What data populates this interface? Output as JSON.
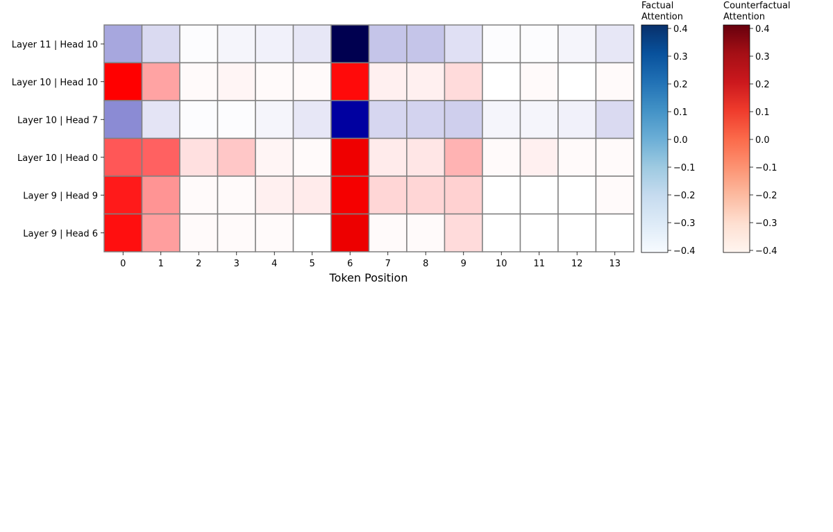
{
  "chart_data": {
    "type": "heatmap",
    "xlabel": "Token Position",
    "ylabel": "",
    "x_categories": [
      "0",
      "1",
      "2",
      "3",
      "4",
      "5",
      "6",
      "7",
      "8",
      "9",
      "10",
      "11",
      "12",
      "13"
    ],
    "y_categories": [
      "Layer 11 | Head 10",
      "Layer 10 | Head 10",
      "Layer 10 | Head 7",
      "Layer 10 | Head 0",
      "Layer 9 | Head 9",
      "Layer 9 | Head 6"
    ],
    "rows": [
      {
        "label": "Layer 11 | Head 10",
        "map": "factual",
        "values": [
          0.26,
          0.11,
          0.01,
          0.03,
          0.04,
          0.07,
          1.0,
          0.17,
          0.17,
          0.09,
          0.01,
          0.01,
          0.03,
          0.07
        ]
      },
      {
        "label": "Layer 10 | Head 10",
        "map": "counterfactual",
        "values": [
          0.5,
          0.18,
          0.01,
          0.02,
          0.01,
          0.01,
          0.48,
          0.03,
          0.03,
          0.07,
          0.0,
          0.01,
          0.0,
          0.01
        ]
      },
      {
        "label": "Layer 10 | Head 7",
        "map": "factual",
        "values": [
          0.34,
          0.08,
          0.01,
          0.01,
          0.03,
          0.07,
          0.75,
          0.12,
          0.13,
          0.14,
          0.03,
          0.03,
          0.04,
          0.11
        ]
      },
      {
        "label": "Layer 10 | Head 0",
        "map": "counterfactual",
        "values": [
          0.33,
          0.31,
          0.06,
          0.11,
          0.02,
          0.01,
          0.63,
          0.04,
          0.05,
          0.15,
          0.01,
          0.03,
          0.01,
          0.01
        ]
      },
      {
        "label": "Layer 9 | Head 9",
        "map": "counterfactual",
        "values": [
          0.45,
          0.21,
          0.01,
          0.01,
          0.03,
          0.04,
          0.58,
          0.08,
          0.08,
          0.09,
          0.0,
          0.0,
          0.0,
          0.01
        ]
      },
      {
        "label": "Layer 9 | Head 6",
        "map": "counterfactual",
        "values": [
          0.47,
          0.19,
          0.01,
          0.01,
          0.01,
          0.0,
          0.64,
          0.01,
          0.01,
          0.07,
          0.0,
          0.0,
          0.0,
          0.0
        ]
      }
    ],
    "colorbars": [
      {
        "title_lines": [
          "Factual",
          "Attention"
        ],
        "colormap": "Blues",
        "range": [
          -0.4,
          0.4
        ],
        "ticks": [
          "0.4",
          "0.3",
          "0.2",
          "0.1",
          "0.0",
          "−0.1",
          "−0.2",
          "−0.3",
          "−0.4"
        ]
      },
      {
        "title_lines": [
          "Counterfactual",
          "Attention"
        ],
        "colormap": "Reds",
        "range": [
          -0.4,
          0.4
        ],
        "ticks": [
          "0.4",
          "0.3",
          "0.2",
          "0.1",
          "0.0",
          "−0.1",
          "−0.2",
          "−0.3",
          "−0.4"
        ]
      }
    ],
    "colors": {
      "factual_high": "#000050",
      "counterfactual_high": "#c00000",
      "cell_border": "#808080"
    }
  }
}
